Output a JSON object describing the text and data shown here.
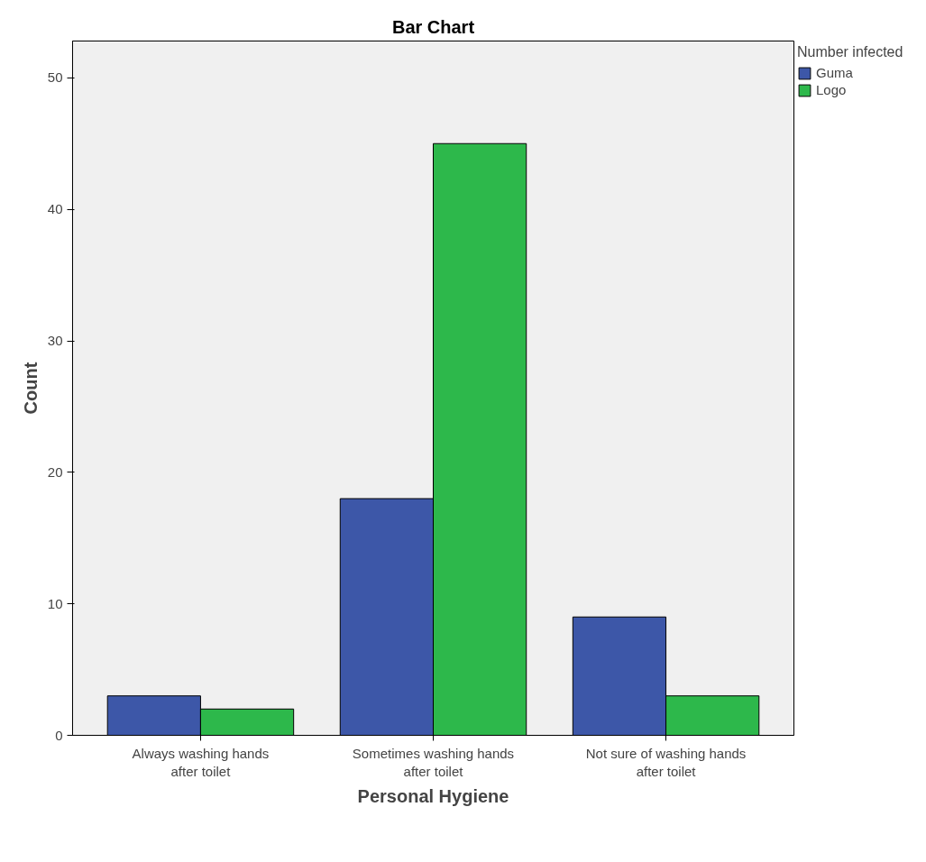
{
  "chart_data": {
    "type": "bar",
    "title": "Bar Chart",
    "xlabel": "Personal Hygiene",
    "ylabel": "Count",
    "legend_title": "Number infected",
    "categories": [
      "Always washing hands after toilet",
      "Sometimes washing hands after toilet",
      "Not sure of washing hands after toilet"
    ],
    "series": [
      {
        "name": "Guma",
        "color": "#3d57a8",
        "values": [
          3,
          18,
          9
        ]
      },
      {
        "name": "Logo",
        "color": "#2db84b",
        "values": [
          2,
          45,
          3
        ]
      }
    ],
    "ylim": [
      0,
      52.8
    ],
    "yticks": [
      0,
      10,
      20,
      30,
      40,
      50
    ],
    "grid": false,
    "legend": "top right"
  }
}
